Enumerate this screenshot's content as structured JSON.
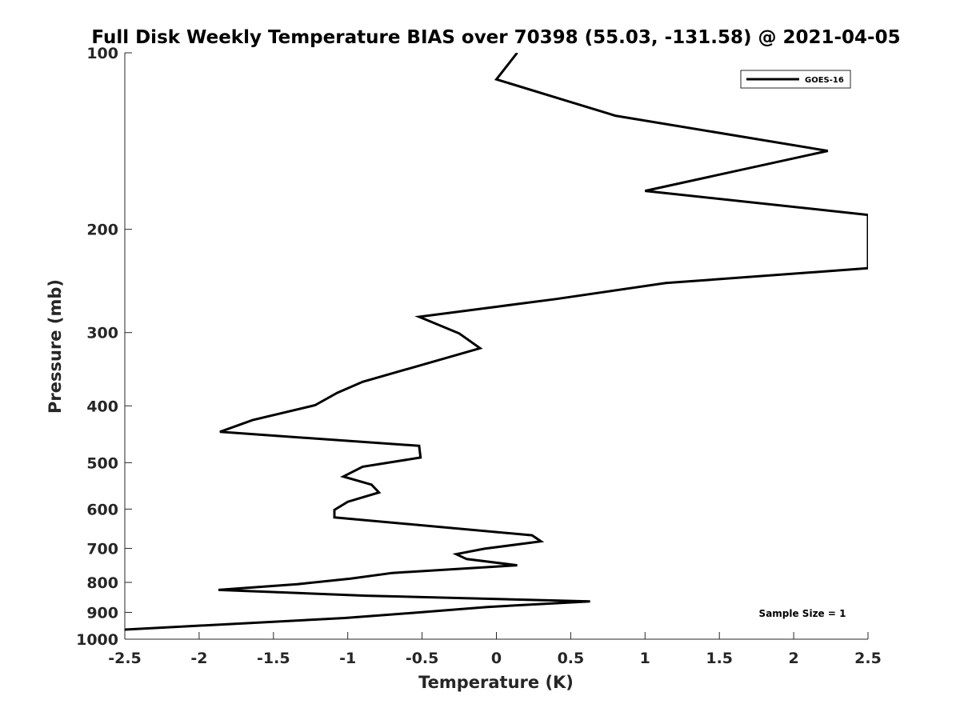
{
  "chart_data": {
    "type": "line",
    "title": "Full Disk Weekly Temperature BIAS over 70398 (55.03, -131.58) @ 2021-04-05",
    "xlabel": "Temperature (K)",
    "ylabel": "Pressure (mb)",
    "xlim": [
      -2.5,
      2.5
    ],
    "ylim": [
      1000,
      100
    ],
    "yscale": "log",
    "yreverse": true,
    "grid": false,
    "legend_position": "top-right",
    "xticks": [
      "-2.5",
      "-2",
      "-1.5",
      "-1",
      "-0.5",
      "0",
      "0.5",
      "1",
      "1.5",
      "2",
      "2.5"
    ],
    "yticks": [
      "100",
      "200",
      "300",
      "400",
      "500",
      "600",
      "700",
      "800",
      "900",
      "1000"
    ],
    "series": [
      {
        "name": "GOES-16",
        "color": "#000000",
        "x": [
          0.14,
          0.0,
          0.8,
          2.23,
          1.0,
          2.5,
          2.5,
          1.14,
          0.4,
          -0.52,
          -0.25,
          -0.11,
          -0.9,
          -1.07,
          -1.22,
          -1.64,
          -1.86,
          -0.52,
          -0.51,
          -0.9,
          -1.03,
          -0.84,
          -0.79,
          -1.0,
          -1.09,
          -1.09,
          0.24,
          0.3,
          -0.08,
          -0.27,
          -0.2,
          0.14,
          -0.7,
          -0.98,
          -1.34,
          -1.87,
          -0.88,
          0.63,
          -0.06,
          -0.52,
          -1.02,
          -2.5
        ],
        "y": [
          100,
          111,
          128,
          147,
          172,
          189,
          233,
          247,
          263,
          282,
          301,
          319,
          364,
          380,
          399,
          423,
          443,
          468,
          490,
          508,
          528,
          545,
          562,
          583,
          602,
          620,
          665,
          681,
          701,
          716,
          730,
          748,
          771,
          788,
          806,
          824,
          843,
          862,
          881,
          900,
          920,
          963
        ]
      }
    ],
    "annotations": [
      "Sample Size = 1"
    ]
  }
}
